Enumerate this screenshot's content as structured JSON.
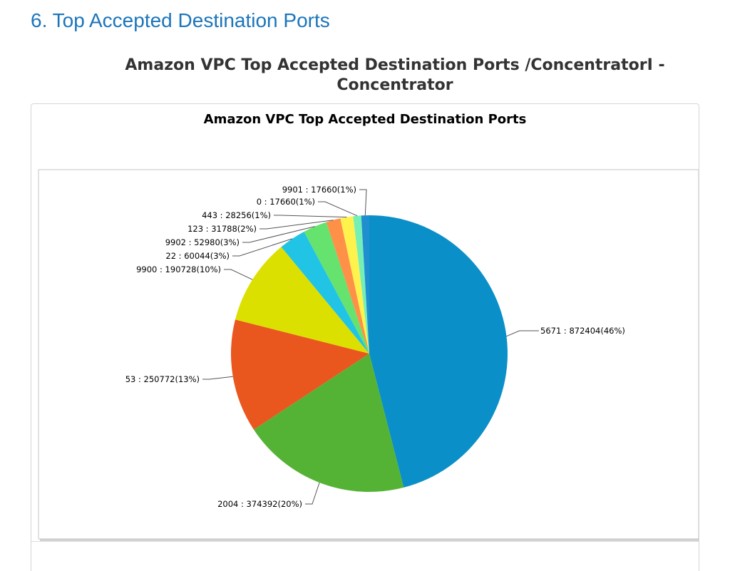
{
  "section": {
    "heading": "6. Top Accepted Destination Ports"
  },
  "report": {
    "title": "Amazon VPC Top Accepted Destination Ports /ConcentratorI - Concentrator"
  },
  "colors": {
    "heading": "#1b75bb",
    "title": "#333333",
    "leader_line": "#555555"
  },
  "chart_data": {
    "type": "pie",
    "title": "Amazon VPC Top Accepted Destination Ports",
    "label_format": "{category} : {value}({percent}%)",
    "slices": [
      {
        "category": "5671",
        "value": 872404,
        "percent": 46,
        "label": "5671 : 872404(46%)",
        "color": "#0a8fc8"
      },
      {
        "category": "2004",
        "value": 374392,
        "percent": 20,
        "label": "2004 : 374392(20%)",
        "color": "#54b334"
      },
      {
        "category": "53",
        "value": 250772,
        "percent": 13,
        "label": "53 : 250772(13%)",
        "color": "#e9571f"
      },
      {
        "category": "9900",
        "value": 190728,
        "percent": 10,
        "label": "9900 : 190728(10%)",
        "color": "#dce000"
      },
      {
        "category": "22",
        "value": 60044,
        "percent": 3,
        "label": "22 : 60044(3%)",
        "color": "#21c4e5"
      },
      {
        "category": "9902",
        "value": 52980,
        "percent": 3,
        "label": "9902 : 52980(3%)",
        "color": "#66e26e"
      },
      {
        "category": "123",
        "value": 31788,
        "percent": 2,
        "label": "123 : 31788(2%)",
        "color": "#ff9048"
      },
      {
        "category": "443",
        "value": 28256,
        "percent": 1,
        "label": "443 : 28256(1%)",
        "color": "#fff24d"
      },
      {
        "category": "0",
        "value": 17660,
        "percent": 1,
        "label": "0 : 17660(1%)",
        "color": "#74f0b6"
      },
      {
        "category": "9901",
        "value": 17660,
        "percent": 1,
        "label": "9901 : 17660(1%)",
        "color": "#1f8fd0"
      }
    ]
  }
}
